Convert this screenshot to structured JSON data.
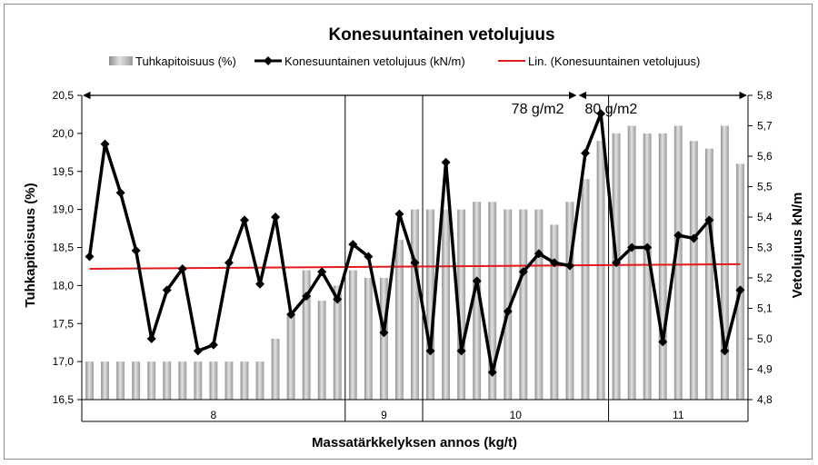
{
  "chart_data": {
    "type": "bar",
    "title": "Konesuuntainen vetolujuus",
    "xlabel": "Massatärkkelyksen annos (kg/t)",
    "ylabel": "Tuhkapitoisuus (%)",
    "y2label": "Vetolujuus kN/m",
    "ylim": [
      16.5,
      20.5
    ],
    "y2lim": [
      4.8,
      5.8
    ],
    "yticks": [
      "16,5",
      "17,0",
      "17,5",
      "18,0",
      "18,5",
      "19,0",
      "19,5",
      "20,0",
      "20,5"
    ],
    "y2ticks": [
      "4,8",
      "4,9",
      "5,0",
      "5,1",
      "5,2",
      "5,3",
      "5,4",
      "5,5",
      "5,6",
      "5,7",
      "5,8"
    ],
    "grid": false,
    "legend_position": "top",
    "groups": [
      {
        "label": "8",
        "count": 17
      },
      {
        "label": "9",
        "count": 5
      },
      {
        "label": "10",
        "count": 12
      },
      {
        "label": "11",
        "count": 9
      }
    ],
    "annotations": [
      {
        "text": "78 g/m2",
        "span": [
          0,
          32
        ]
      },
      {
        "text": "80 g/m2",
        "span": [
          32,
          43
        ]
      }
    ],
    "series": [
      {
        "name": "Tuhkapitoisuus (%)",
        "kind": "bar",
        "axis": "left",
        "color": "#a6a6a6",
        "values": [
          17.0,
          17.0,
          17.0,
          17.0,
          17.0,
          17.0,
          17.0,
          17.0,
          17.0,
          17.0,
          17.0,
          17.0,
          17.3,
          17.6,
          18.2,
          17.8,
          18.0,
          18.2,
          18.1,
          18.1,
          18.6,
          19.0,
          19.0,
          19.0,
          19.0,
          19.1,
          19.1,
          19.0,
          19.0,
          19.0,
          18.8,
          19.1,
          19.4,
          19.9,
          20.0,
          20.1,
          20.0,
          20.0,
          20.1,
          19.9,
          19.8,
          20.1,
          19.6
        ]
      },
      {
        "name": "Konesuuntainen vetolujuus  (kN/m)",
        "kind": "line",
        "axis": "right",
        "color": "#000000",
        "values": [
          5.27,
          5.64,
          5.48,
          5.29,
          5.0,
          5.16,
          5.23,
          4.96,
          4.98,
          5.25,
          5.39,
          5.18,
          5.4,
          5.08,
          5.14,
          5.22,
          5.13,
          5.31,
          5.27,
          5.02,
          5.41,
          5.25,
          4.96,
          5.58,
          4.96,
          5.19,
          4.89,
          5.09,
          5.22,
          5.28,
          5.25,
          5.24,
          5.61,
          5.74,
          5.25,
          5.3,
          5.3,
          4.99,
          5.34,
          5.33,
          5.39,
          4.96,
          5.16
        ]
      },
      {
        "name": "Lin. (Konesuuntainen vetolujuus)",
        "kind": "trendline",
        "axis": "right",
        "color": "#e31a1c",
        "values": [
          5.23,
          5.245
        ]
      }
    ]
  }
}
